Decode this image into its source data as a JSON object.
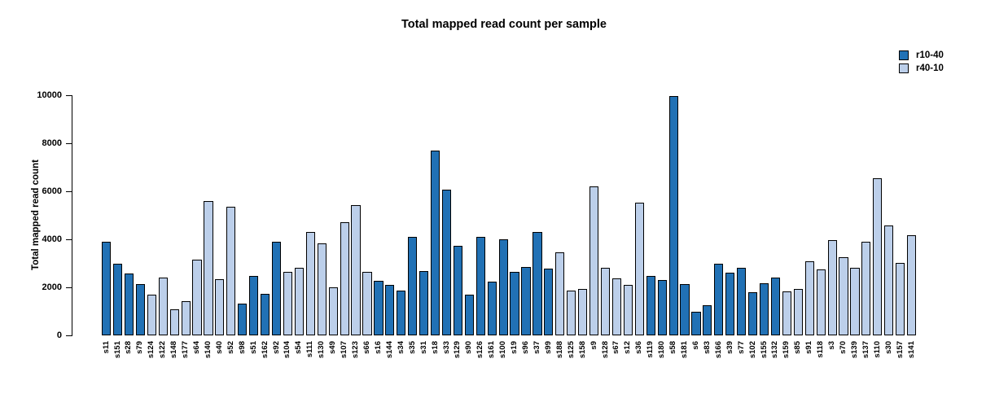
{
  "chart_data": {
    "type": "bar",
    "title": "Total mapped read count per sample",
    "ylabel": "Total mapped read count",
    "xlabel": "",
    "ylim": [
      0,
      10000
    ],
    "yticks": [
      0,
      2000,
      4000,
      6000,
      8000,
      10000
    ],
    "grid": false,
    "legend_position": "top-right",
    "bar_border_color": "#000000",
    "series": [
      {
        "name": "r10-40",
        "color": "#2171B5"
      },
      {
        "name": "r40-10",
        "color": "#BCCFEA"
      }
    ],
    "bars": [
      {
        "sample": "s11",
        "group": "r10-40",
        "value": 3900
      },
      {
        "sample": "s151",
        "group": "r10-40",
        "value": 2980
      },
      {
        "sample": "s28",
        "group": "r10-40",
        "value": 2580
      },
      {
        "sample": "s79",
        "group": "r10-40",
        "value": 2130
      },
      {
        "sample": "s124",
        "group": "r40-10",
        "value": 1700
      },
      {
        "sample": "s122",
        "group": "r40-10",
        "value": 2420
      },
      {
        "sample": "s148",
        "group": "r40-10",
        "value": 1090
      },
      {
        "sample": "s177",
        "group": "r40-10",
        "value": 1420
      },
      {
        "sample": "s64",
        "group": "r40-10",
        "value": 3140
      },
      {
        "sample": "s140",
        "group": "r40-10",
        "value": 5600
      },
      {
        "sample": "s40",
        "group": "r40-10",
        "value": 2350
      },
      {
        "sample": "s52",
        "group": "r40-10",
        "value": 5350
      },
      {
        "sample": "s98",
        "group": "r10-40",
        "value": 1330
      },
      {
        "sample": "s51",
        "group": "r10-40",
        "value": 2460
      },
      {
        "sample": "s162",
        "group": "r10-40",
        "value": 1740
      },
      {
        "sample": "s92",
        "group": "r10-40",
        "value": 3890
      },
      {
        "sample": "s104",
        "group": "r40-10",
        "value": 2640
      },
      {
        "sample": "s54",
        "group": "r40-10",
        "value": 2820
      },
      {
        "sample": "s111",
        "group": "r40-10",
        "value": 4310
      },
      {
        "sample": "s130",
        "group": "r40-10",
        "value": 3820
      },
      {
        "sample": "s49",
        "group": "r40-10",
        "value": 2010
      },
      {
        "sample": "s107",
        "group": "r40-10",
        "value": 4700
      },
      {
        "sample": "s123",
        "group": "r40-10",
        "value": 5420
      },
      {
        "sample": "s66",
        "group": "r40-10",
        "value": 2640
      },
      {
        "sample": "s16",
        "group": "r10-40",
        "value": 2260
      },
      {
        "sample": "s144",
        "group": "r10-40",
        "value": 2100
      },
      {
        "sample": "s34",
        "group": "r10-40",
        "value": 1850
      },
      {
        "sample": "s35",
        "group": "r10-40",
        "value": 4100
      },
      {
        "sample": "s31",
        "group": "r10-40",
        "value": 2670
      },
      {
        "sample": "s18",
        "group": "r10-40",
        "value": 7700
      },
      {
        "sample": "s33",
        "group": "r10-40",
        "value": 6070
      },
      {
        "sample": "s129",
        "group": "r10-40",
        "value": 3720
      },
      {
        "sample": "s90",
        "group": "r10-40",
        "value": 1680
      },
      {
        "sample": "s126",
        "group": "r10-40",
        "value": 4110
      },
      {
        "sample": "s161",
        "group": "r10-40",
        "value": 2230
      },
      {
        "sample": "s100",
        "group": "r10-40",
        "value": 4000
      },
      {
        "sample": "s19",
        "group": "r10-40",
        "value": 2640
      },
      {
        "sample": "s96",
        "group": "r10-40",
        "value": 2850
      },
      {
        "sample": "s37",
        "group": "r10-40",
        "value": 4290
      },
      {
        "sample": "s99",
        "group": "r10-40",
        "value": 2780
      },
      {
        "sample": "s188",
        "group": "r40-10",
        "value": 3460
      },
      {
        "sample": "s125",
        "group": "r40-10",
        "value": 1850
      },
      {
        "sample": "s158",
        "group": "r40-10",
        "value": 1930
      },
      {
        "sample": "s9",
        "group": "r40-10",
        "value": 6190
      },
      {
        "sample": "s128",
        "group": "r40-10",
        "value": 2830
      },
      {
        "sample": "s67",
        "group": "r40-10",
        "value": 2360
      },
      {
        "sample": "s12",
        "group": "r40-10",
        "value": 2090
      },
      {
        "sample": "s36",
        "group": "r40-10",
        "value": 5510
      },
      {
        "sample": "s119",
        "group": "r10-40",
        "value": 2470
      },
      {
        "sample": "s180",
        "group": "r10-40",
        "value": 2310
      },
      {
        "sample": "s58",
        "group": "r10-40",
        "value": 9950
      },
      {
        "sample": "s181",
        "group": "r10-40",
        "value": 2130
      },
      {
        "sample": "s6",
        "group": "r10-40",
        "value": 970
      },
      {
        "sample": "s83",
        "group": "r10-40",
        "value": 1250
      },
      {
        "sample": "s166",
        "group": "r10-40",
        "value": 2980
      },
      {
        "sample": "s39",
        "group": "r10-40",
        "value": 2610
      },
      {
        "sample": "s77",
        "group": "r10-40",
        "value": 2800
      },
      {
        "sample": "s102",
        "group": "r10-40",
        "value": 1790
      },
      {
        "sample": "s155",
        "group": "r10-40",
        "value": 2170
      },
      {
        "sample": "s132",
        "group": "r10-40",
        "value": 2420
      },
      {
        "sample": "s159",
        "group": "r40-10",
        "value": 1830
      },
      {
        "sample": "s85",
        "group": "r40-10",
        "value": 1940
      },
      {
        "sample": "s91",
        "group": "r40-10",
        "value": 3070
      },
      {
        "sample": "s118",
        "group": "r40-10",
        "value": 2740
      },
      {
        "sample": "s3",
        "group": "r40-10",
        "value": 3960
      },
      {
        "sample": "s70",
        "group": "r40-10",
        "value": 3250
      },
      {
        "sample": "s139",
        "group": "r40-10",
        "value": 2800
      },
      {
        "sample": "s137",
        "group": "r40-10",
        "value": 3910
      },
      {
        "sample": "s110",
        "group": "r40-10",
        "value": 6530
      },
      {
        "sample": "s30",
        "group": "r40-10",
        "value": 4590
      },
      {
        "sample": "s157",
        "group": "r40-10",
        "value": 3030
      },
      {
        "sample": "s141",
        "group": "r40-10",
        "value": 4160
      }
    ]
  }
}
